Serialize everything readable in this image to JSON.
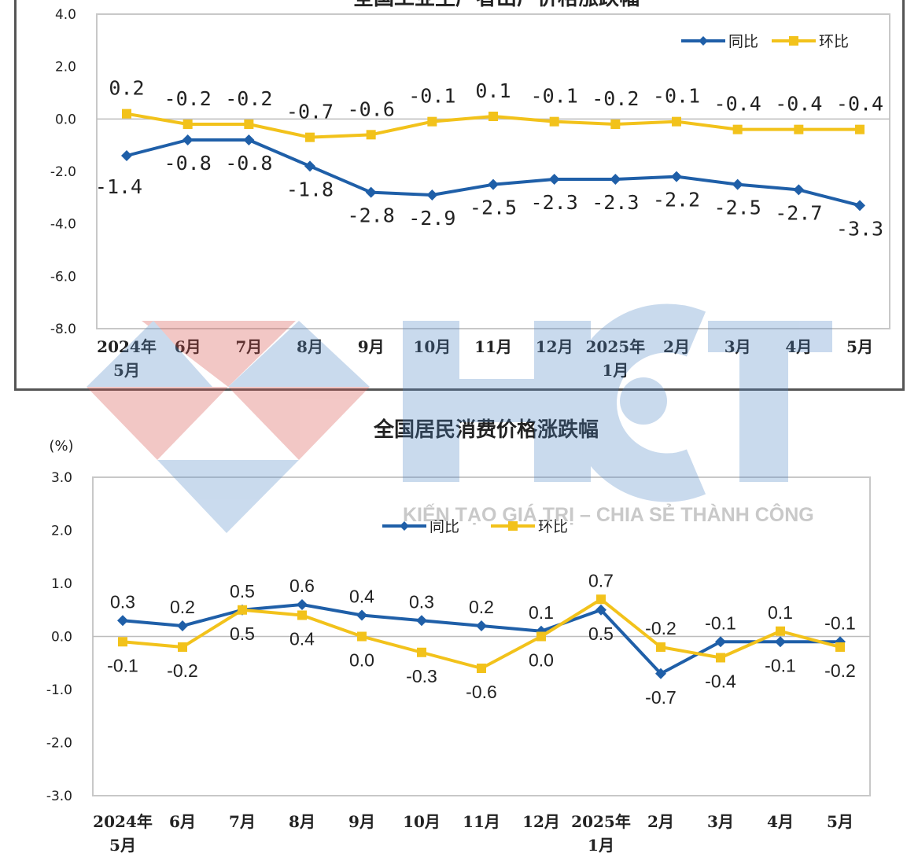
{
  "colors": {
    "yoy": "#1f5fa8",
    "mom": "#f2c21b",
    "plot_border": "#c8c8c8",
    "frame": "#555555"
  },
  "watermark": {
    "brand": "HCT",
    "slogan": "KIẾN TẠO GIÁ TRỊ – CHIA SẺ THÀNH CÔNG"
  },
  "chart_data": [
    {
      "type": "line",
      "title": "全国工业生产者出厂价格涨跌幅",
      "categories": [
        "2024年 5月",
        "6月",
        "7月",
        "8月",
        "9月",
        "10月",
        "11月",
        "12月",
        "2025年 1月",
        "2月",
        "3月",
        "4月",
        "5月"
      ],
      "ylim": [
        -8.0,
        4.0
      ],
      "yticks": [
        "4.0",
        "2.0",
        "0.0",
        "-2.0",
        "-4.0",
        "-6.0",
        "-8.0"
      ],
      "grid": false,
      "legend_position": "top-right",
      "series": [
        {
          "name": "同比",
          "values": [
            -1.4,
            -0.8,
            -0.8,
            -1.8,
            -2.8,
            -2.9,
            -2.5,
            -2.3,
            -2.3,
            -2.2,
            -2.5,
            -2.7,
            -3.3
          ],
          "labels": [
            "-1.4",
            "-0.8",
            "-0.8",
            "-1.8",
            "-2.8",
            "-2.9",
            "-2.5",
            "-2.3",
            "-2.3",
            "-2.2",
            "-2.5",
            "-2.7",
            "-3.3"
          ]
        },
        {
          "name": "环比",
          "values": [
            0.2,
            -0.2,
            -0.2,
            -0.7,
            -0.6,
            -0.1,
            0.1,
            -0.1,
            -0.2,
            -0.1,
            -0.4,
            -0.4,
            -0.4
          ],
          "labels": [
            "0.2",
            "-0.2",
            "-0.2",
            "-0.7",
            "-0.6",
            "-0.1",
            "0.1",
            "-0.1",
            "-0.2",
            "-0.1",
            "-0.4",
            "-0.4",
            "-0.4"
          ]
        }
      ]
    },
    {
      "type": "line",
      "title": "全国居民消费价格涨跌幅",
      "ylabel": "(%)",
      "categories": [
        "2024年 5月",
        "6月",
        "7月",
        "8月",
        "9月",
        "10月",
        "11月",
        "12月",
        "2025年 1月",
        "2月",
        "3月",
        "4月",
        "5月"
      ],
      "ylim": [
        -3.0,
        3.0
      ],
      "yticks": [
        "3.0",
        "2.0",
        "1.0",
        "0.0",
        "-1.0",
        "-2.0",
        "-3.0"
      ],
      "grid": false,
      "legend_position": "top-center",
      "series": [
        {
          "name": "同比",
          "values": [
            0.3,
            0.2,
            0.5,
            0.6,
            0.4,
            0.3,
            0.2,
            0.1,
            0.5,
            -0.7,
            -0.1,
            -0.1,
            -0.1
          ],
          "labels": [
            "0.3",
            "0.2",
            "0.5",
            "0.6",
            "0.4",
            "0.3",
            "0.2",
            "0.1",
            "0.5",
            "-0.7",
            "-0.1",
            "-0.1",
            "-0.1"
          ]
        },
        {
          "name": "环比",
          "values": [
            -0.1,
            -0.2,
            0.5,
            0.4,
            0.0,
            -0.3,
            -0.6,
            0.0,
            0.7,
            -0.2,
            -0.4,
            0.1,
            -0.2
          ],
          "labels": [
            "-0.1",
            "-0.2",
            "0.5",
            "0.4",
            "0.0",
            "-0.3",
            "-0.6",
            "0.0",
            "0.7",
            "-0.2",
            "-0.4",
            "0.1",
            "-0.2"
          ]
        }
      ]
    }
  ]
}
